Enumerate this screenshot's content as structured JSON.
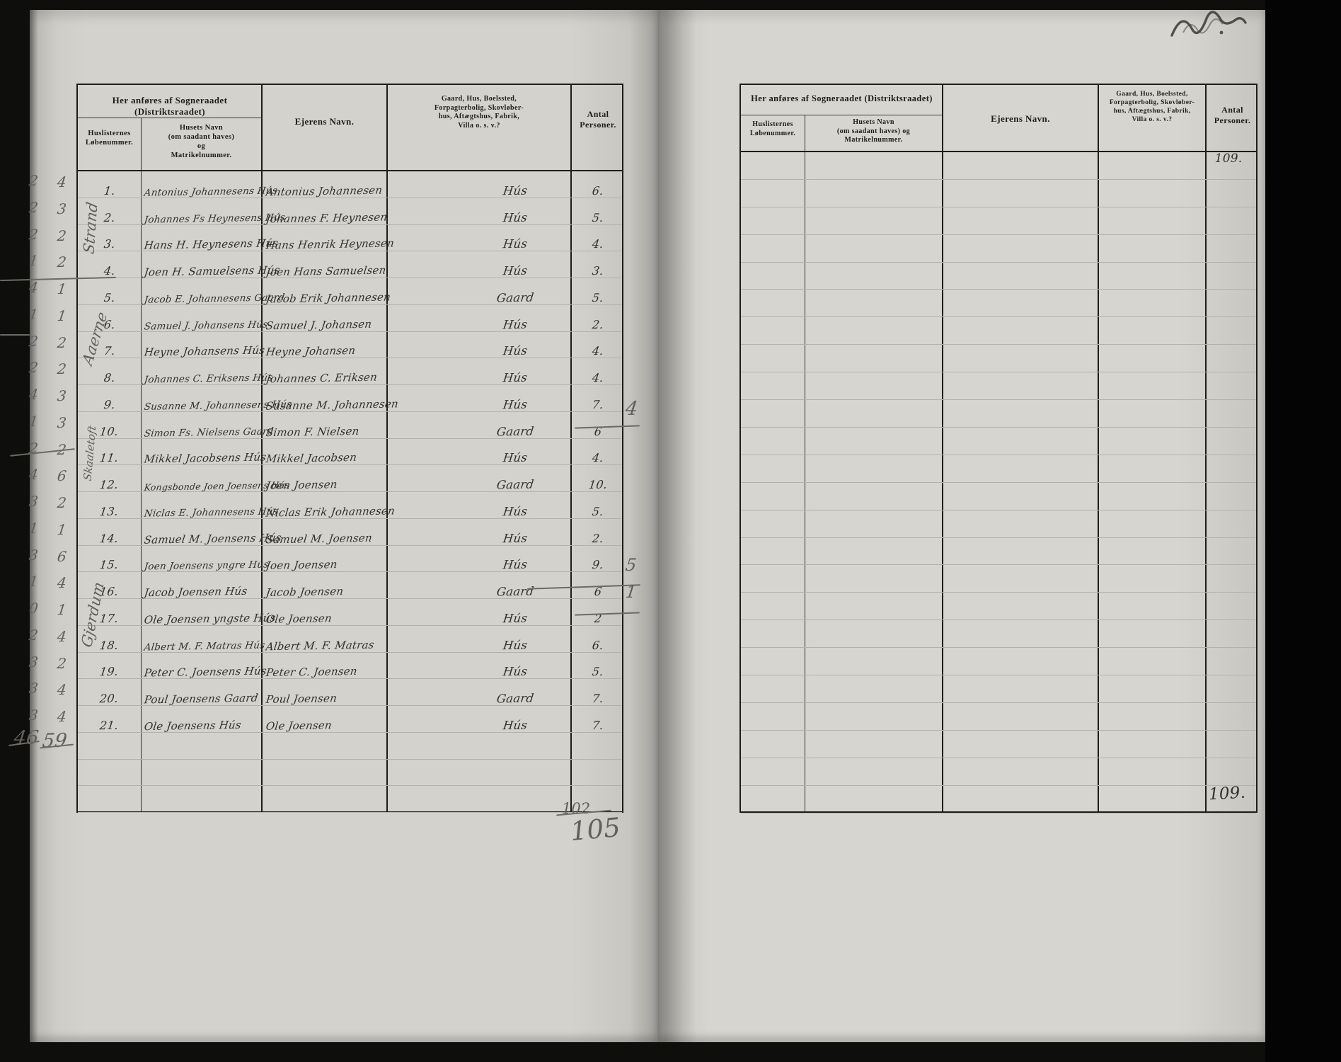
{
  "headers": {
    "group_title": "Her anføres af Sogneraadet (Distriktsraadet)",
    "col_huslisternes": [
      "Huslisternes",
      "Løbenummer."
    ],
    "col_husets_navn": [
      "Husets Navn",
      "(om saadant haves)",
      "og",
      "Matrikelnummer."
    ],
    "col_ejerens_navn": "Ejerens Navn.",
    "col_gaard": [
      "Gaard, Hus, Boelssted,",
      "Forpagterbolig, Skovløber-",
      "hus, Aftægtshus, Fabrik,",
      "Villa o. s. v.?"
    ],
    "col_antal": [
      "Antal",
      "Personer."
    ]
  },
  "left_table": {
    "rows": [
      {
        "n": "1.",
        "hus": "Antonius Johannesens Hús",
        "ejer": "Antonius Johannesen",
        "type": "Hús",
        "antal": "6.",
        "ma": "2",
        "mb": "4"
      },
      {
        "n": "2.",
        "hus": "Johannes Fs Heynesens Hús",
        "ejer": "Johannes F. Heynesen",
        "type": "Hús",
        "antal": "5.",
        "ma": "2",
        "mb": "3"
      },
      {
        "n": "3.",
        "hus": "Hans H. Heynesens Hús",
        "ejer": "Hans Henrik Heynesen",
        "type": "Hús",
        "antal": "4.",
        "ma": "2",
        "mb": "2"
      },
      {
        "n": "4.",
        "hus": "Joen H. Samuelsens Hús",
        "ejer": "Joen Hans Samuelsen",
        "type": "Hús",
        "antal": "3.",
        "ma": "1",
        "mb": "2"
      },
      {
        "n": "5.",
        "hus": "Jacob E. Johannesens Gaard",
        "ejer": "Jacob Erik Johannesen",
        "type": "Gaard",
        "antal": "5.",
        "ma": "4",
        "mb": "1"
      },
      {
        "n": "6.",
        "hus": "Samuel J. Johansens Hús",
        "ejer": "Samuel J. Johansen",
        "type": "Hús",
        "antal": "2.",
        "ma": "1",
        "mb": "1"
      },
      {
        "n": "7.",
        "hus": "Heyne Johansens Hús",
        "ejer": "Heyne Johansen",
        "type": "Hús",
        "antal": "4.",
        "ma": "2",
        "mb": "2"
      },
      {
        "n": "8.",
        "hus": "Johannes C. Eriksens Hús",
        "ejer": "Johannes C. Eriksen",
        "type": "Hús",
        "antal": "4.",
        "ma": "2",
        "mb": "2"
      },
      {
        "n": "9.",
        "hus": "Susanne M. Johannesens Hús",
        "ejer": "Susanne M. Johannesen",
        "type": "Hús",
        "antal": "7.",
        "ma": "4",
        "mb": "3"
      },
      {
        "n": "10.",
        "hus": "Simon Fs. Nielsens Gaard",
        "ejer": "Simon F. Nielsen",
        "type": "Gaard",
        "antal": "6",
        "struck_antal": true,
        "correction": "4",
        "ma": "1",
        "mb": "3"
      },
      {
        "n": "11.",
        "hus": "Mikkel Jacobsens Hús",
        "ejer": "Mikkel Jacobsen",
        "type": "Hús",
        "antal": "4.",
        "ma": "2",
        "mb": "2",
        "margin_struck": true
      },
      {
        "n": "12.",
        "hus": "Kongsbonde Joen Joensens Hús",
        "ejer": "Joen Joensen",
        "type": "Gaard",
        "antal": "10.",
        "ma": "4",
        "mb": "6"
      },
      {
        "n": "13.",
        "hus": "Niclas E. Johannesens Hús",
        "ejer": "Niclas Erik Johannesen",
        "type": "Hús",
        "antal": "5.",
        "ma": "3",
        "mb": "2"
      },
      {
        "n": "14.",
        "hus": "Samuel M. Joensens Hús",
        "ejer": "Samuel M. Joensen",
        "type": "Hús",
        "antal": "2.",
        "ma": "1",
        "mb": "1"
      },
      {
        "n": "15.",
        "hus": "Joen Joensens yngre Hús",
        "ejer": "Joen Joensen",
        "type": "Hús",
        "antal": "9.",
        "ma": "3",
        "mb": "6"
      },
      {
        "n": "16.",
        "hus": "Jacob Joensen Hús",
        "ejer": "Jacob Joensen",
        "type": "Gaard",
        "antal": "6",
        "struck_type": true,
        "struck_antal": true,
        "correction": "5",
        "ma": "1",
        "mb": "4"
      },
      {
        "n": "17.",
        "hus": "Ole Joensen yngste Hús",
        "ejer": "Ole Joensen",
        "type": "Hús",
        "antal": "2",
        "struck_antal": true,
        "correction": "1",
        "ma": "0",
        "mb": "1"
      },
      {
        "n": "18.",
        "hus": "Albert M. F. Matras Hús",
        "ejer": "Albert M. F. Matras",
        "type": "Hús",
        "antal": "6.",
        "ma": "2",
        "mb": "4"
      },
      {
        "n": "19.",
        "hus": "Peter C. Joensens Hús",
        "ejer": "Peter C. Joensen",
        "type": "Hús",
        "antal": "5.",
        "ma": "3",
        "mb": "2"
      },
      {
        "n": "20.",
        "hus": "Poul Joensens Gaard",
        "ejer": "Poul Joensen",
        "type": "Gaard",
        "antal": "7.",
        "ma": "3",
        "mb": "4"
      },
      {
        "n": "21.",
        "hus": "Ole Joensens Hús",
        "ejer": "Ole Joensen",
        "type": "Hús",
        "antal": "7.",
        "ma": "3",
        "mb": "4"
      }
    ]
  },
  "margin": {
    "totals": {
      "a": "46",
      "b": "59"
    },
    "places": [
      {
        "label": "Strand"
      },
      {
        "label": "Aaerne"
      },
      {
        "label": "Skaaletoft"
      },
      {
        "label": "Gjerdum"
      }
    ]
  },
  "right_table": {
    "row1_antal": "109.",
    "bottom_antal": "109."
  },
  "bottom_notes": {
    "struck_total": "102",
    "pencil_total": "105"
  }
}
